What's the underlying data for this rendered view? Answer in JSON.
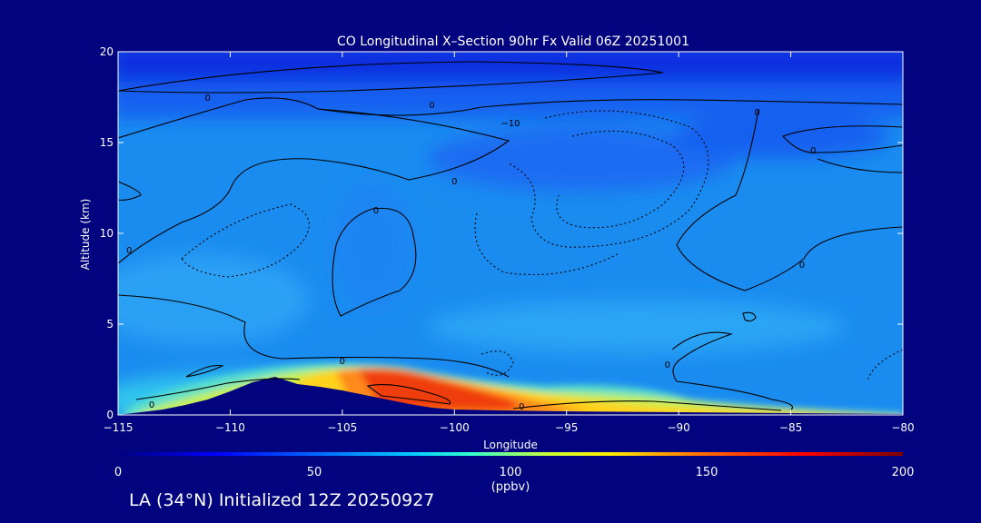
{
  "chart_data": {
    "type": "heatmap",
    "title": "CO Longitudinal X–Section 90hr  Fx Valid 06Z 20251001",
    "xlabel": "Longitude",
    "ylabel": "Altitude (km)",
    "xlim": [
      -115,
      -80
    ],
    "ylim": [
      0,
      20
    ],
    "x_ticks": [
      -115,
      -110,
      -105,
      -100,
      -95,
      -90,
      -85,
      -80
    ],
    "x_tick_labels": [
      "−115",
      "−110",
      "−105",
      "−100",
      "−95",
      "−90",
      "−85",
      "−80"
    ],
    "y_ticks": [
      0,
      5,
      10,
      15,
      20
    ],
    "y_tick_labels": [
      "0",
      "5",
      "10",
      "15",
      "20"
    ],
    "grid": false,
    "colorbar": {
      "label": "(ppbv)",
      "range": [
        0,
        200
      ],
      "ticks": [
        0,
        50,
        100,
        150,
        200
      ],
      "tick_labels": [
        "0",
        "50",
        "100",
        "150",
        "200"
      ]
    },
    "terrain_km": [
      {
        "x": -115.0,
        "y": 0.0
      },
      {
        "x": -114.0,
        "y": 0.15
      },
      {
        "x": -113.0,
        "y": 0.3
      },
      {
        "x": -112.0,
        "y": 0.55
      },
      {
        "x": -111.0,
        "y": 0.85
      },
      {
        "x": -110.0,
        "y": 1.3
      },
      {
        "x": -109.0,
        "y": 1.8
      },
      {
        "x": -108.0,
        "y": 2.1
      },
      {
        "x": -107.0,
        "y": 1.7
      },
      {
        "x": -106.0,
        "y": 1.55
      },
      {
        "x": -105.0,
        "y": 1.35
      },
      {
        "x": -104.0,
        "y": 1.1
      },
      {
        "x": -103.0,
        "y": 0.85
      },
      {
        "x": -102.0,
        "y": 0.6
      },
      {
        "x": -101.0,
        "y": 0.4
      },
      {
        "x": -100.0,
        "y": 0.3
      },
      {
        "x": -98.0,
        "y": 0.25
      },
      {
        "x": -95.0,
        "y": 0.2
      },
      {
        "x": -90.0,
        "y": 0.15
      },
      {
        "x": -85.0,
        "y": 0.1
      },
      {
        "x": -80.0,
        "y": 0.05
      }
    ],
    "contour_labels": [
      {
        "x": -111.0,
        "y": 17.5,
        "text": "0"
      },
      {
        "x": -101.0,
        "y": 17.1,
        "text": "0"
      },
      {
        "x": -97.5,
        "y": 16.1,
        "text": "−10"
      },
      {
        "x": -86.5,
        "y": 16.7,
        "text": "0"
      },
      {
        "x": -84.0,
        "y": 14.6,
        "text": "0"
      },
      {
        "x": -100.0,
        "y": 12.9,
        "text": "0"
      },
      {
        "x": -103.5,
        "y": 11.3,
        "text": "0"
      },
      {
        "x": -114.5,
        "y": 9.1,
        "text": "0"
      },
      {
        "x": -84.5,
        "y": 8.3,
        "text": "0"
      },
      {
        "x": -105.0,
        "y": 3.0,
        "text": "0"
      },
      {
        "x": -90.5,
        "y": 2.8,
        "text": "0"
      },
      {
        "x": -113.5,
        "y": 0.6,
        "text": "0"
      },
      {
        "x": -97.0,
        "y": 0.5,
        "text": "0"
      }
    ]
  },
  "footer": {
    "text": "LA (34°N) Initialized 12Z 20250927"
  }
}
